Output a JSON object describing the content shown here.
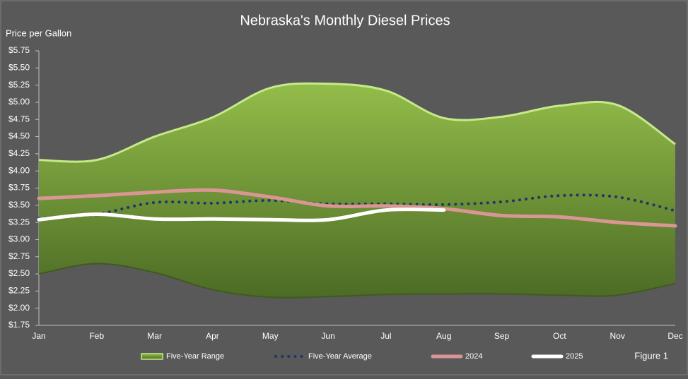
{
  "chart_data": {
    "type": "line",
    "title": "Nebraska's Monthly Diesel Prices",
    "y_label": "Price per Gallon",
    "annotation": "Figure 1",
    "categories": [
      "Jan",
      "Feb",
      "Mar",
      "Apr",
      "May",
      "Jun",
      "Jul",
      "Aug",
      "Sep",
      "Oct",
      "Nov",
      "Dec"
    ],
    "ylim": [
      1.75,
      5.75
    ],
    "yticks": [
      {
        "value": 1.75,
        "label": "$1.75"
      },
      {
        "value": 2.0,
        "label": "$2.00"
      },
      {
        "value": 2.25,
        "label": "$2.25"
      },
      {
        "value": 2.5,
        "label": "$2.50"
      },
      {
        "value": 2.75,
        "label": "$2.75"
      },
      {
        "value": 3.0,
        "label": "$3.00"
      },
      {
        "value": 3.25,
        "label": "$3.25"
      },
      {
        "value": 3.5,
        "label": "$3.50"
      },
      {
        "value": 3.75,
        "label": "$3.75"
      },
      {
        "value": 4.0,
        "label": "$4.00"
      },
      {
        "value": 4.25,
        "label": "$4.25"
      },
      {
        "value": 4.5,
        "label": "$4.50"
      },
      {
        "value": 4.75,
        "label": "$4.75"
      },
      {
        "value": 5.0,
        "label": "$5.00"
      },
      {
        "value": 5.25,
        "label": "$5.25"
      },
      {
        "value": 5.5,
        "label": "$5.50"
      },
      {
        "value": 5.75,
        "label": "$5.75"
      }
    ],
    "grid": false,
    "legend": "bottom",
    "series": [
      {
        "name": "Five-Year Range",
        "style": "range",
        "color": "#86ad43",
        "values": [
          4.16,
          4.16,
          4.5,
          4.78,
          5.21,
          5.27,
          5.17,
          4.77,
          4.79,
          4.95,
          4.96,
          4.39
        ],
        "low": [
          2.5,
          2.65,
          2.52,
          2.27,
          2.16,
          2.17,
          2.2,
          2.21,
          2.21,
          2.19,
          2.19,
          2.36
        ]
      },
      {
        "name": "Five-Year Average",
        "style": "dotted",
        "color": "#1f3864",
        "values": [
          3.31,
          3.37,
          3.54,
          3.53,
          3.57,
          3.52,
          3.52,
          3.51,
          3.55,
          3.64,
          3.62,
          3.42
        ]
      },
      {
        "name": "2024",
        "style": "solid",
        "color": "#d99694",
        "values": [
          3.6,
          3.64,
          3.69,
          3.72,
          3.62,
          3.49,
          3.49,
          3.45,
          3.35,
          3.33,
          3.25,
          3.2
        ]
      },
      {
        "name": "2025",
        "style": "solid",
        "color": "#ffffff",
        "values": [
          3.29,
          3.37,
          3.3,
          3.3,
          3.29,
          3.29,
          3.43,
          3.43,
          null,
          null,
          null,
          null
        ]
      }
    ]
  }
}
